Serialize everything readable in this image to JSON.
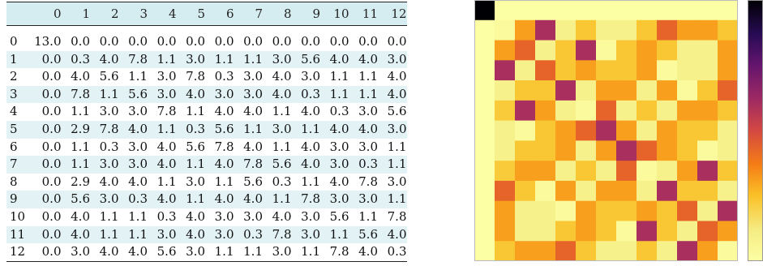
{
  "table": {
    "columns": [
      "0",
      "1",
      "2",
      "3",
      "4",
      "5",
      "6",
      "7",
      "8",
      "9",
      "10",
      "11",
      "12"
    ],
    "rows": [
      {
        "label": "0",
        "values": [
          "13.0",
          "0.0",
          "0.0",
          "0.0",
          "0.0",
          "0.0",
          "0.0",
          "0.0",
          "0.0",
          "0.0",
          "0.0",
          "0.0",
          "0.0"
        ]
      },
      {
        "label": "1",
        "values": [
          "0.0",
          "0.3",
          "4.0",
          "7.8",
          "1.1",
          "3.0",
          "1.1",
          "1.1",
          "3.0",
          "5.6",
          "4.0",
          "4.0",
          "3.0"
        ]
      },
      {
        "label": "2",
        "values": [
          "0.0",
          "4.0",
          "5.6",
          "1.1",
          "3.0",
          "7.8",
          "0.3",
          "3.0",
          "4.0",
          "3.0",
          "1.1",
          "1.1",
          "4.0"
        ]
      },
      {
        "label": "3",
        "values": [
          "0.0",
          "7.8",
          "1.1",
          "5.6",
          "3.0",
          "4.0",
          "3.0",
          "3.0",
          "4.0",
          "0.3",
          "1.1",
          "1.1",
          "4.0"
        ]
      },
      {
        "label": "4",
        "values": [
          "0.0",
          "1.1",
          "3.0",
          "3.0",
          "7.8",
          "1.1",
          "4.0",
          "4.0",
          "1.1",
          "4.0",
          "0.3",
          "3.0",
          "5.6"
        ]
      },
      {
        "label": "5",
        "values": [
          "0.0",
          "2.9",
          "7.8",
          "4.0",
          "1.1",
          "0.3",
          "5.6",
          "1.1",
          "3.0",
          "1.1",
          "4.0",
          "4.0",
          "3.0"
        ]
      },
      {
        "label": "6",
        "values": [
          "0.0",
          "1.1",
          "0.3",
          "3.0",
          "4.0",
          "5.6",
          "7.8",
          "4.0",
          "1.1",
          "4.0",
          "3.0",
          "3.0",
          "1.1"
        ]
      },
      {
        "label": "7",
        "values": [
          "0.0",
          "1.1",
          "3.0",
          "3.0",
          "4.0",
          "1.1",
          "4.0",
          "7.8",
          "5.6",
          "4.0",
          "3.0",
          "0.3",
          "1.1"
        ]
      },
      {
        "label": "8",
        "values": [
          "0.0",
          "2.9",
          "4.0",
          "4.0",
          "1.1",
          "3.0",
          "1.1",
          "5.6",
          "0.3",
          "1.1",
          "4.0",
          "7.8",
          "3.0"
        ]
      },
      {
        "label": "9",
        "values": [
          "0.0",
          "5.6",
          "3.0",
          "0.3",
          "4.0",
          "1.1",
          "4.0",
          "4.0",
          "1.1",
          "7.8",
          "3.0",
          "3.0",
          "1.1"
        ]
      },
      {
        "label": "10",
        "values": [
          "0.0",
          "4.0",
          "1.1",
          "1.1",
          "0.3",
          "4.0",
          "3.0",
          "3.0",
          "4.0",
          "3.0",
          "5.6",
          "1.1",
          "7.8"
        ]
      },
      {
        "label": "11",
        "values": [
          "0.0",
          "4.0",
          "1.1",
          "1.1",
          "3.0",
          "4.0",
          "3.0",
          "0.3",
          "7.8",
          "3.0",
          "1.1",
          "5.6",
          "4.0"
        ]
      },
      {
        "label": "12",
        "values": [
          "0.0",
          "3.0",
          "4.0",
          "4.0",
          "5.6",
          "3.0",
          "1.1",
          "1.1",
          "3.0",
          "1.1",
          "7.8",
          "4.0",
          "0.3"
        ]
      }
    ]
  },
  "chart_data": {
    "type": "heatmap",
    "rows": 13,
    "cols": 13,
    "vmin": 0,
    "vmax": 13,
    "colormap": "inferno",
    "values": [
      [
        13.0,
        0.0,
        0.0,
        0.0,
        0.0,
        0.0,
        0.0,
        0.0,
        0.0,
        0.0,
        0.0,
        0.0,
        0.0
      ],
      [
        0.0,
        0.3,
        4.0,
        7.8,
        1.1,
        3.0,
        1.1,
        1.1,
        3.0,
        5.6,
        4.0,
        4.0,
        3.0
      ],
      [
        0.0,
        4.0,
        5.6,
        1.1,
        3.0,
        7.8,
        0.3,
        3.0,
        4.0,
        3.0,
        1.1,
        1.1,
        4.0
      ],
      [
        0.0,
        7.8,
        1.1,
        5.6,
        3.0,
        4.0,
        3.0,
        3.0,
        4.0,
        0.3,
        1.1,
        1.1,
        4.0
      ],
      [
        0.0,
        1.1,
        3.0,
        3.0,
        7.8,
        1.1,
        4.0,
        4.0,
        1.1,
        4.0,
        0.3,
        3.0,
        5.6
      ],
      [
        0.0,
        2.9,
        7.8,
        4.0,
        1.1,
        0.3,
        5.6,
        1.1,
        3.0,
        1.1,
        4.0,
        4.0,
        3.0
      ],
      [
        0.0,
        1.1,
        0.3,
        3.0,
        4.0,
        5.6,
        7.8,
        4.0,
        1.1,
        4.0,
        3.0,
        3.0,
        1.1
      ],
      [
        0.0,
        1.1,
        3.0,
        3.0,
        4.0,
        1.1,
        4.0,
        7.8,
        5.6,
        4.0,
        3.0,
        0.3,
        1.1
      ],
      [
        0.0,
        2.9,
        4.0,
        4.0,
        1.1,
        3.0,
        1.1,
        5.6,
        0.3,
        1.1,
        4.0,
        7.8,
        3.0
      ],
      [
        0.0,
        5.6,
        3.0,
        0.3,
        4.0,
        1.1,
        4.0,
        4.0,
        1.1,
        7.8,
        3.0,
        3.0,
        1.1
      ],
      [
        0.0,
        4.0,
        1.1,
        1.1,
        0.3,
        4.0,
        3.0,
        3.0,
        4.0,
        3.0,
        5.6,
        1.1,
        7.8
      ],
      [
        0.0,
        4.0,
        1.1,
        1.1,
        3.0,
        4.0,
        3.0,
        0.3,
        7.8,
        3.0,
        1.1,
        5.6,
        4.0
      ],
      [
        0.0,
        3.0,
        4.0,
        4.0,
        5.6,
        3.0,
        1.1,
        1.1,
        3.0,
        1.1,
        7.8,
        4.0,
        0.3
      ]
    ]
  }
}
